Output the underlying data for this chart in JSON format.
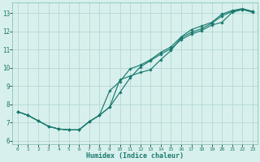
{
  "xlabel": "Humidex (Indice chaleur)",
  "background_color": "#d8f0ed",
  "grid_color": "#b8dbd7",
  "line_color": "#1a7a6e",
  "xlim": [
    -0.5,
    23.5
  ],
  "ylim": [
    5.8,
    13.6
  ],
  "xtick_labels": [
    "0",
    "1",
    "2",
    "3",
    "4",
    "5",
    "6",
    "7",
    "8",
    "9",
    "10",
    "11",
    "12",
    "13",
    "14",
    "15",
    "16",
    "17",
    "18",
    "19",
    "20",
    "21",
    "22",
    "23"
  ],
  "ytick_labels": [
    "6",
    "7",
    "8",
    "9",
    "10",
    "11",
    "12",
    "13"
  ],
  "ytick_vals": [
    6,
    7,
    8,
    9,
    10,
    11,
    12,
    13
  ],
  "curve1_x": [
    0,
    1,
    2,
    3,
    4,
    5,
    6,
    7,
    8,
    9,
    10,
    11,
    12,
    13,
    14,
    15,
    16,
    17,
    18,
    19,
    20,
    21,
    22,
    23
  ],
  "curve1_y": [
    7.6,
    7.4,
    7.1,
    6.8,
    6.65,
    6.6,
    6.6,
    7.05,
    7.4,
    7.85,
    8.65,
    9.45,
    10.05,
    10.4,
    10.75,
    11.05,
    11.55,
    11.85,
    12.05,
    12.35,
    12.5,
    13.05,
    13.2,
    13.1
  ],
  "curve2_x": [
    0,
    1,
    2,
    3,
    4,
    5,
    6,
    7,
    8,
    9,
    10,
    11,
    12,
    13,
    14,
    15,
    16,
    17,
    18,
    19,
    20,
    21,
    22,
    23
  ],
  "curve2_y": [
    7.6,
    7.4,
    7.1,
    6.8,
    6.65,
    6.6,
    6.6,
    7.05,
    7.4,
    7.85,
    9.35,
    9.55,
    9.75,
    9.9,
    10.45,
    10.95,
    11.65,
    11.95,
    12.15,
    12.45,
    12.85,
    13.1,
    13.2,
    13.05
  ],
  "curve3_x": [
    0,
    1,
    2,
    3,
    4,
    5,
    6,
    7,
    8,
    9,
    10,
    11,
    12,
    13,
    14,
    15,
    16,
    17,
    18,
    19,
    20,
    21,
    22,
    23
  ],
  "curve3_y": [
    7.6,
    7.4,
    7.1,
    6.8,
    6.65,
    6.6,
    6.6,
    7.05,
    7.4,
    8.75,
    9.25,
    9.95,
    10.15,
    10.45,
    10.85,
    11.15,
    11.7,
    12.1,
    12.3,
    12.5,
    12.95,
    13.15,
    13.25,
    13.1
  ]
}
